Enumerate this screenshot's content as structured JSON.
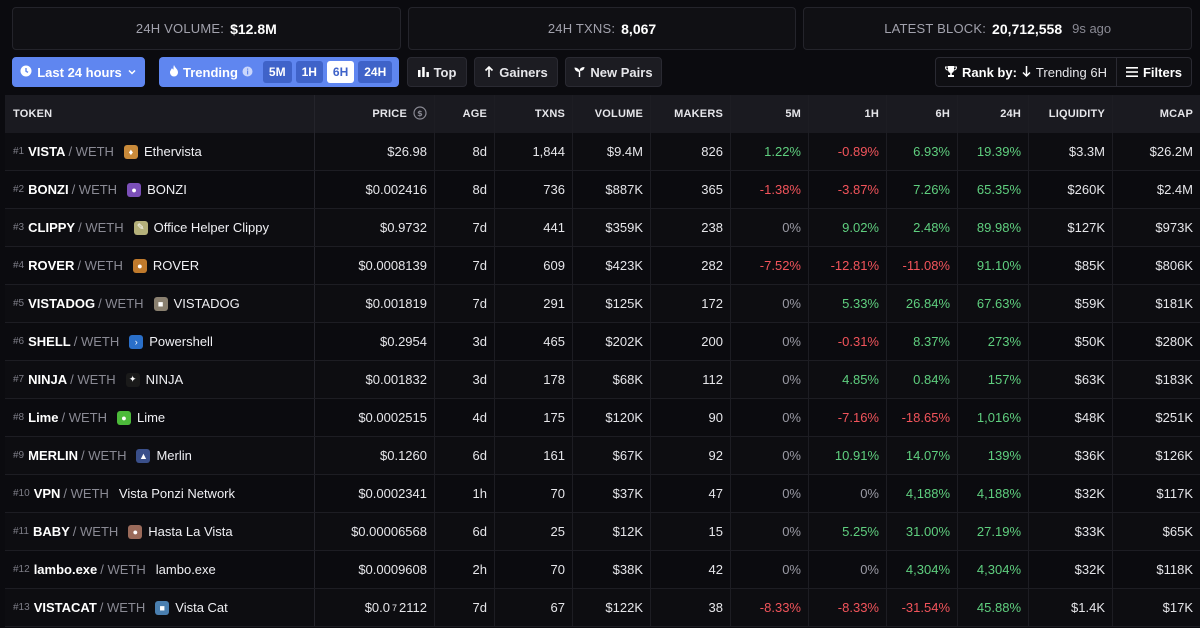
{
  "stats": {
    "volume_label": "24H VOLUME:",
    "volume_value": "$12.8M",
    "txns_label": "24H TXNS:",
    "txns_value": "8,067",
    "block_label": "LATEST BLOCK:",
    "block_value": "20,712,558",
    "block_ago": "9s ago"
  },
  "toolbar": {
    "timeframe": "Last 24 hours",
    "trending": "Trending",
    "trend_options": [
      "5M",
      "1H",
      "6H",
      "24H"
    ],
    "trend_active": "6H",
    "top": "Top",
    "gainers": "Gainers",
    "new_pairs": "New Pairs",
    "rank_by_label": "Rank by:",
    "rank_by_value": "Trending 6H",
    "filters": "Filters"
  },
  "columns": {
    "token": "TOKEN",
    "price": "PRICE",
    "age": "AGE",
    "txns": "TXNS",
    "volume": "VOLUME",
    "makers": "MAKERS",
    "m5": "5M",
    "h1": "1H",
    "h6": "6H",
    "h24": "24H",
    "liquidity": "LIQUIDITY",
    "mcap": "MCAP"
  },
  "colors": {
    "accent": "#5f86f0",
    "positive": "#5fcf7f",
    "negative": "#f2545b",
    "neutral": "#9a9aa4"
  },
  "rows": [
    {
      "rank": "#1",
      "symbol": "VISTA",
      "pair": "/ WETH",
      "icon": "ethervista-icon",
      "icon_glyph": "♦",
      "icon_color": "#c98a3a",
      "name": "Ethervista",
      "price": "$26.98",
      "age": "8d",
      "txns": "1,844",
      "volume": "$9.4M",
      "makers": "826",
      "m5": "1.22%",
      "h1": "-0.89%",
      "h6": "6.93%",
      "h24": "19.39%",
      "liquidity": "$3.3M",
      "mcap": "$26.2M"
    },
    {
      "rank": "#2",
      "symbol": "BONZI",
      "pair": "/ WETH",
      "icon": "bonzi-icon",
      "icon_glyph": "●",
      "icon_color": "#7b4fb8",
      "name": "BONZI",
      "price": "$0.002416",
      "age": "8d",
      "txns": "736",
      "volume": "$887K",
      "makers": "365",
      "m5": "-1.38%",
      "h1": "-3.87%",
      "h6": "7.26%",
      "h24": "65.35%",
      "liquidity": "$260K",
      "mcap": "$2.4M"
    },
    {
      "rank": "#3",
      "symbol": "CLIPPY",
      "pair": "/ WETH",
      "icon": "clippy-icon",
      "icon_glyph": "✎",
      "icon_color": "#b4b07a",
      "name": "Office Helper Clippy",
      "price": "$0.9732",
      "age": "7d",
      "txns": "441",
      "volume": "$359K",
      "makers": "238",
      "m5": "0%",
      "h1": "9.02%",
      "h6": "2.48%",
      "h24": "89.98%",
      "liquidity": "$127K",
      "mcap": "$973K"
    },
    {
      "rank": "#4",
      "symbol": "ROVER",
      "pair": "/ WETH",
      "icon": "rover-icon",
      "icon_glyph": "●",
      "icon_color": "#c07a2c",
      "name": "ROVER",
      "price": "$0.0008139",
      "age": "7d",
      "txns": "609",
      "volume": "$423K",
      "makers": "282",
      "m5": "-7.52%",
      "h1": "-12.81%",
      "h6": "-11.08%",
      "h24": "91.10%",
      "liquidity": "$85K",
      "mcap": "$806K"
    },
    {
      "rank": "#5",
      "symbol": "VISTADOG",
      "pair": "/ WETH",
      "icon": "vistadog-icon",
      "icon_glyph": "■",
      "icon_color": "#8a8070",
      "name": "VISTADOG",
      "price": "$0.001819",
      "age": "7d",
      "txns": "291",
      "volume": "$125K",
      "makers": "172",
      "m5": "0%",
      "h1": "5.33%",
      "h6": "26.84%",
      "h24": "67.63%",
      "liquidity": "$59K",
      "mcap": "$181K"
    },
    {
      "rank": "#6",
      "symbol": "SHELL",
      "pair": "/ WETH",
      "icon": "powershell-icon",
      "icon_glyph": "›",
      "icon_color": "#2a6fc9",
      "name": "Powershell",
      "price": "$0.2954",
      "age": "3d",
      "txns": "465",
      "volume": "$202K",
      "makers": "200",
      "m5": "0%",
      "h1": "-0.31%",
      "h6": "8.37%",
      "h24": "273%",
      "liquidity": "$50K",
      "mcap": "$280K"
    },
    {
      "rank": "#7",
      "symbol": "NINJA",
      "pair": "/ WETH",
      "icon": "ninja-icon",
      "icon_glyph": "✦",
      "icon_color": "#1a1a1a",
      "name": "NINJA",
      "price": "$0.001832",
      "age": "3d",
      "txns": "178",
      "volume": "$68K",
      "makers": "112",
      "m5": "0%",
      "h1": "4.85%",
      "h6": "0.84%",
      "h24": "157%",
      "liquidity": "$63K",
      "mcap": "$183K"
    },
    {
      "rank": "#8",
      "symbol": "Lime",
      "pair": "/ WETH",
      "icon": "lime-icon",
      "icon_glyph": "●",
      "icon_color": "#4cba3a",
      "name": "Lime",
      "price": "$0.0002515",
      "age": "4d",
      "txns": "175",
      "volume": "$120K",
      "makers": "90",
      "m5": "0%",
      "h1": "-7.16%",
      "h6": "-18.65%",
      "h24": "1,016%",
      "liquidity": "$48K",
      "mcap": "$251K"
    },
    {
      "rank": "#9",
      "symbol": "MERLIN",
      "pair": "/ WETH",
      "icon": "merlin-icon",
      "icon_glyph": "▲",
      "icon_color": "#3a4f8a",
      "name": "Merlin",
      "price": "$0.1260",
      "age": "6d",
      "txns": "161",
      "volume": "$67K",
      "makers": "92",
      "m5": "0%",
      "h1": "10.91%",
      "h6": "14.07%",
      "h24": "139%",
      "liquidity": "$36K",
      "mcap": "$126K"
    },
    {
      "rank": "#10",
      "symbol": "VPN",
      "pair": "/ WETH",
      "icon": "",
      "icon_glyph": "",
      "icon_color": "",
      "name": "Vista Ponzi Network",
      "price": "$0.0002341",
      "age": "1h",
      "txns": "70",
      "volume": "$37K",
      "makers": "47",
      "m5": "0%",
      "h1": "0%",
      "h6": "4,188%",
      "h24": "4,188%",
      "liquidity": "$32K",
      "mcap": "$117K"
    },
    {
      "rank": "#11",
      "symbol": "BABY",
      "pair": "/ WETH",
      "icon": "hasta-la-vista-icon",
      "icon_glyph": "●",
      "icon_color": "#9a6a5a",
      "name": "Hasta La Vista",
      "price": "$0.00006568",
      "age": "6d",
      "txns": "25",
      "volume": "$12K",
      "makers": "15",
      "m5": "0%",
      "h1": "5.25%",
      "h6": "31.00%",
      "h24": "27.19%",
      "liquidity": "$33K",
      "mcap": "$65K"
    },
    {
      "rank": "#12",
      "symbol": "lambo.exe",
      "pair": "/ WETH",
      "icon": "",
      "icon_glyph": "",
      "icon_color": "",
      "name": "lambo.exe",
      "price": "$0.0009608",
      "age": "2h",
      "txns": "70",
      "volume": "$38K",
      "makers": "42",
      "m5": "0%",
      "h1": "0%",
      "h6": "4,304%",
      "h24": "4,304%",
      "liquidity": "$32K",
      "mcap": "$118K"
    },
    {
      "rank": "#13",
      "symbol": "VISTACAT",
      "pair": "/ WETH",
      "icon": "vista-cat-icon",
      "icon_glyph": "■",
      "icon_color": "#4a7fb0",
      "name": "Vista Cat",
      "price_prefix": "$0.0",
      "price_sub": "7",
      "price_suffix": "2112",
      "price": "",
      "age": "7d",
      "txns": "67",
      "volume": "$122K",
      "makers": "38",
      "m5": "-8.33%",
      "h1": "-8.33%",
      "h6": "-31.54%",
      "h24": "45.88%",
      "liquidity": "$1.4K",
      "mcap": "$17K"
    }
  ]
}
